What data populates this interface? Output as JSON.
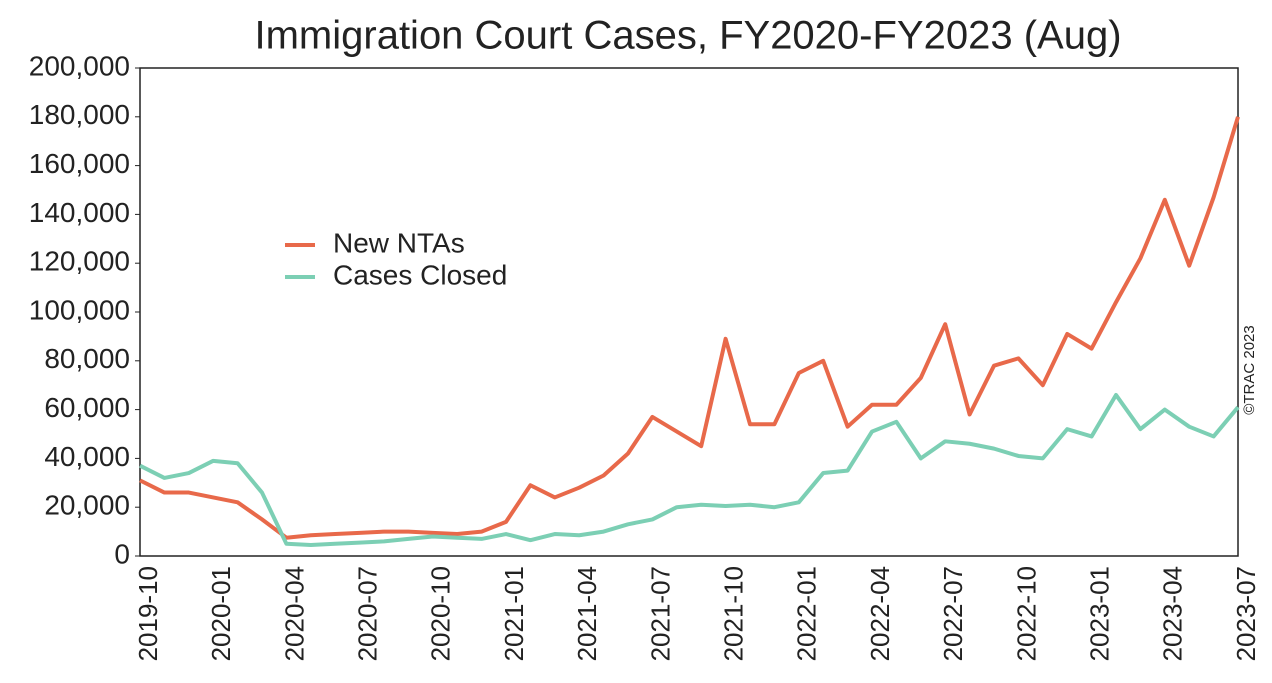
{
  "chart_data": {
    "type": "line",
    "title": "Immigration Court Cases, FY2020-FY2023 (Aug)",
    "annotation": "©TRAC 2023",
    "categories": [
      "2019-10",
      null,
      null,
      "2020-01",
      null,
      null,
      "2020-04",
      null,
      null,
      "2020-07",
      null,
      null,
      "2020-10",
      null,
      null,
      "2021-01",
      null,
      null,
      "2021-04",
      null,
      null,
      "2021-07",
      null,
      null,
      "2021-10",
      null,
      null,
      "2022-01",
      null,
      null,
      "2022-04",
      null,
      null,
      "2022-07",
      null,
      null,
      "2022-10",
      null,
      null,
      "2023-01",
      null,
      null,
      "2023-04",
      null,
      null,
      "2023-07"
    ],
    "series": [
      {
        "name": "New NTAs",
        "color": "#e8694a",
        "values": [
          31000,
          26000,
          26000,
          24000,
          22000,
          15000,
          7500,
          8500,
          9000,
          9500,
          10000,
          10000,
          9500,
          9000,
          10000,
          14000,
          29000,
          24000,
          28000,
          33000,
          42000,
          57000,
          51000,
          45000,
          89000,
          54000,
          54000,
          75000,
          80000,
          53000,
          62000,
          62000,
          73000,
          95000,
          58000,
          78000,
          81000,
          70000,
          91000,
          85000,
          104000,
          122000,
          146000,
          119000,
          147000,
          180000
        ]
      },
      {
        "name": "Cases Closed",
        "color": "#7ccfb4",
        "values": [
          37000,
          32000,
          34000,
          39000,
          38000,
          26000,
          5000,
          4500,
          5000,
          5500,
          6000,
          7000,
          8000,
          7500,
          7000,
          9000,
          6500,
          9000,
          8500,
          10000,
          13000,
          15000,
          20000,
          21000,
          20500,
          21000,
          20000,
          22000,
          34000,
          35000,
          51000,
          55000,
          40000,
          47000,
          46000,
          44000,
          41000,
          40000,
          52000,
          49000,
          66000,
          52000,
          60000,
          53000,
          49000,
          61000
        ]
      }
    ],
    "ylim": [
      0,
      200000
    ],
    "yticks": [
      0,
      {
        "value": 20000,
        "label": "20,000"
      },
      {
        "value": 40000,
        "label": "40,000"
      },
      {
        "value": 60000,
        "label": "60,000"
      },
      {
        "value": 80000,
        "label": "80,000"
      },
      {
        "value": 100000,
        "label": "100,000"
      },
      {
        "value": 120000,
        "label": "120,000"
      },
      {
        "value": 140000,
        "label": "140,000"
      },
      {
        "value": 160000,
        "label": "160,000"
      },
      {
        "value": 180000,
        "label": "180,000"
      },
      {
        "value": 200000,
        "label": "200,000"
      }
    ],
    "grid": false,
    "legend": "upper left"
  }
}
